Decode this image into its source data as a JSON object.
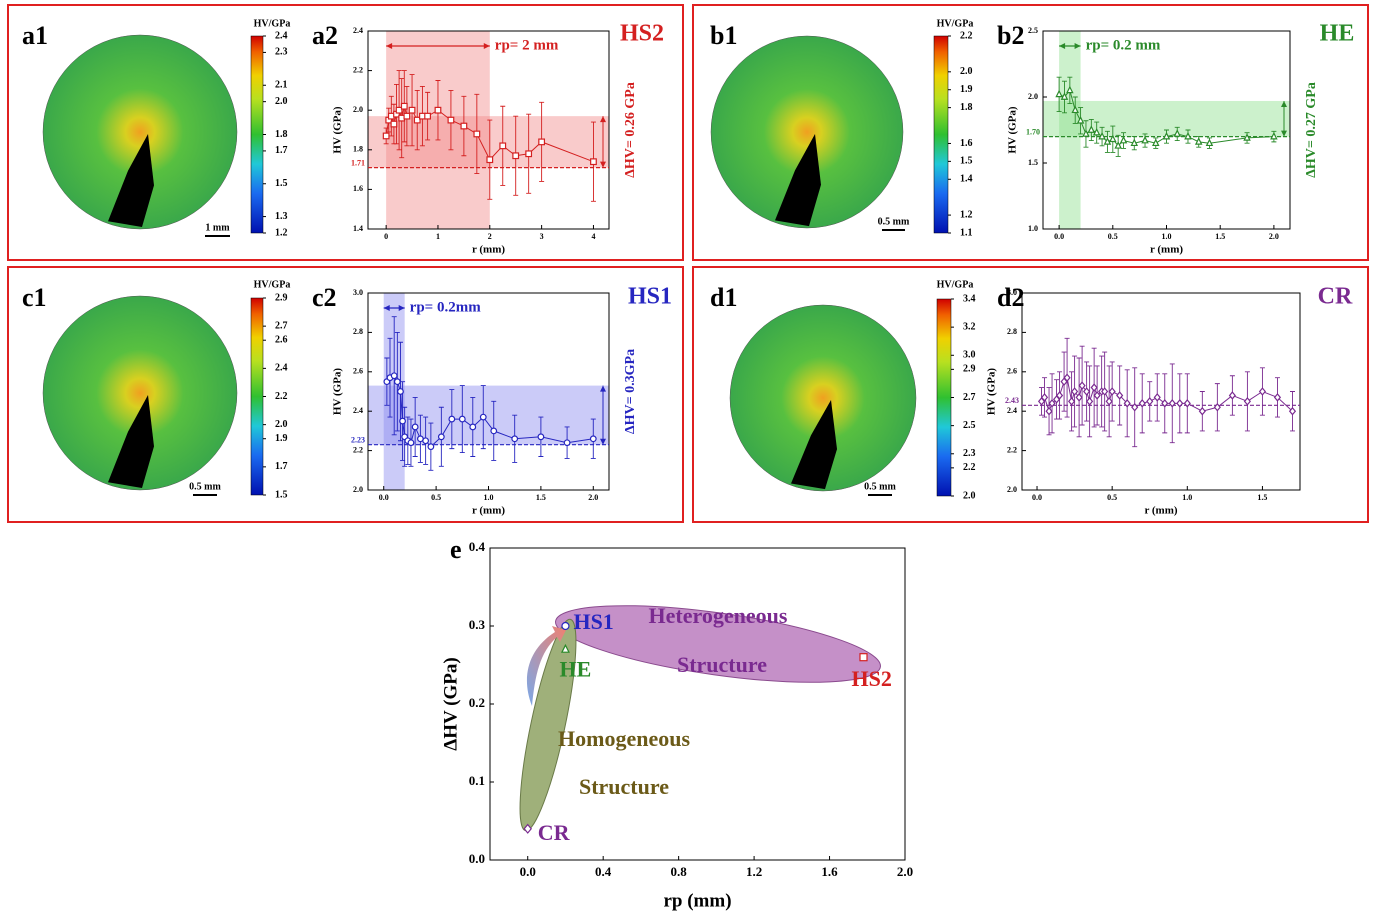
{
  "chart_data": [
    {
      "type": "colorbar",
      "panel": "a1",
      "title": "HV/GPa",
      "ylim": [
        1.2,
        2.4
      ],
      "yticks": [
        1.2,
        1.3,
        1.5,
        1.7,
        1.8,
        {
          "value": 2,
          "label": "2.0"
        },
        2.1,
        2.3,
        2.4
      ],
      "scale_bar": "1 mm"
    },
    {
      "type": "line",
      "panel": "a2",
      "tag": "HS2",
      "color": "#d42020",
      "shade": "#f28b8b",
      "marker": "square",
      "xlabel": "r (mm)",
      "ylabel": "HV (GPa)",
      "xlim": [
        -0.35,
        4.3
      ],
      "xticks": [
        0,
        1,
        2,
        3,
        4
      ],
      "ylim": [
        1.4,
        2.4
      ],
      "yticks": [
        1.4,
        1.6,
        1.8,
        {
          "value": 2,
          "label": "2.0"
        },
        2.2,
        2.4
      ],
      "x": [
        0,
        0.05,
        0.1,
        0.15,
        0.2,
        0.25,
        0.3,
        0.35,
        0.4,
        0.5,
        0.6,
        0.7,
        0.8,
        1.0,
        1.25,
        1.5,
        1.75,
        2.0,
        2.25,
        2.5,
        2.75,
        3.0,
        4.0
      ],
      "values": [
        1.87,
        1.95,
        1.97,
        1.93,
        1.98,
        2.0,
        1.96,
        2.02,
        1.97,
        2.0,
        1.95,
        1.97,
        1.97,
        2.0,
        1.95,
        1.92,
        1.88,
        1.75,
        1.82,
        1.77,
        1.78,
        1.84,
        1.74
      ],
      "errors": [
        0.04,
        0.06,
        0.1,
        0.1,
        0.15,
        0.2,
        0.2,
        0.18,
        0.15,
        0.18,
        0.15,
        0.15,
        0.12,
        0.15,
        0.15,
        0.15,
        0.2,
        0.2,
        0.2,
        0.2,
        0.2,
        0.2,
        0.2
      ],
      "ref": 1.71,
      "rp": 2,
      "rp_label": "rp= 2 mm",
      "dhv": 0.26,
      "dhv_label": "ΔHV= 0.26 GPa"
    },
    {
      "type": "colorbar",
      "panel": "b1",
      "title": "HV/GPa",
      "ylim": [
        1.1,
        2.2
      ],
      "yticks": [
        1.1,
        1.2,
        1.4,
        1.5,
        1.6,
        1.8,
        1.9,
        {
          "value": 2,
          "label": "2.0"
        },
        2.2
      ],
      "scale_bar": "0.5 mm"
    },
    {
      "type": "line",
      "panel": "b2",
      "tag": "HE",
      "color": "#2a8a2a",
      "shade": "#8fe08f",
      "marker": "triangle",
      "xlabel": "r (mm)",
      "ylabel": "HV (GPa)",
      "xlim": [
        -0.15,
        2.15
      ],
      "xticks": [
        {
          "value": 0,
          "label": "0.0"
        },
        0.5,
        {
          "value": 1,
          "label": "1.0"
        },
        1.5,
        {
          "value": 2,
          "label": "2.0"
        }
      ],
      "ylim": [
        1.0,
        2.5
      ],
      "yticks": [
        {
          "value": 1,
          "label": "1.0"
        },
        1.5,
        {
          "value": 2,
          "label": "2.0"
        },
        2.5
      ],
      "x": [
        0,
        0.05,
        0.1,
        0.15,
        0.2,
        0.25,
        0.3,
        0.35,
        0.4,
        0.45,
        0.5,
        0.55,
        0.6,
        0.7,
        0.8,
        0.9,
        1.0,
        1.1,
        1.2,
        1.3,
        1.4,
        1.75,
        2.0
      ],
      "values": [
        2.02,
        2.0,
        2.05,
        1.9,
        1.82,
        1.72,
        1.75,
        1.73,
        1.7,
        1.66,
        1.68,
        1.63,
        1.67,
        1.65,
        1.67,
        1.65,
        1.7,
        1.72,
        1.7,
        1.66,
        1.65,
        1.69,
        1.7
      ],
      "errors": [
        0.13,
        0.12,
        0.1,
        0.1,
        0.1,
        0.1,
        0.08,
        0.08,
        0.07,
        0.08,
        0.1,
        0.08,
        0.06,
        0.05,
        0.05,
        0.04,
        0.05,
        0.05,
        0.05,
        0.04,
        0.04,
        0.04,
        0.04
      ],
      "ref": {
        "value": 1.7,
        "label": "1.70"
      },
      "rp": 0.2,
      "rp_label": "rp= 0.2 mm",
      "dhv": 0.27,
      "dhv_label": "ΔHV= 0.27 GPa"
    },
    {
      "type": "colorbar",
      "panel": "c1",
      "title": "HV/GPa",
      "ylim": [
        1.5,
        2.9
      ],
      "yticks": [
        1.5,
        1.7,
        1.9,
        {
          "value": 2,
          "label": "2.0"
        },
        2.2,
        2.4,
        2.6,
        2.7,
        2.9
      ],
      "scale_bar": "0.5 mm"
    },
    {
      "type": "line",
      "panel": "c2",
      "tag": "HS1",
      "color": "#2626c0",
      "shade": "#8c8cf0",
      "marker": "circle",
      "xlabel": "r (mm)",
      "ylabel": "HV (GPa)",
      "xlim": [
        -0.15,
        2.15
      ],
      "xticks": [
        {
          "value": 0,
          "label": "0.0"
        },
        0.5,
        {
          "value": 1,
          "label": "1.0"
        },
        1.5,
        {
          "value": 2,
          "label": "2.0"
        }
      ],
      "ylim": [
        2.0,
        3.0
      ],
      "yticks": [
        {
          "value": 2,
          "label": "2.0"
        },
        2.2,
        2.4,
        2.6,
        2.8,
        {
          "value": 3,
          "label": "3.0"
        }
      ],
      "x": [
        0.03,
        0.06,
        0.1,
        0.13,
        0.16,
        0.18,
        0.2,
        0.23,
        0.26,
        0.3,
        0.35,
        0.4,
        0.45,
        0.55,
        0.65,
        0.75,
        0.85,
        0.95,
        1.05,
        1.25,
        1.5,
        1.75,
        2.0
      ],
      "values": [
        2.55,
        2.57,
        2.58,
        2.55,
        2.5,
        2.35,
        2.27,
        2.25,
        2.24,
        2.32,
        2.26,
        2.25,
        2.22,
        2.27,
        2.36,
        2.36,
        2.32,
        2.37,
        2.3,
        2.26,
        2.27,
        2.24,
        2.26
      ],
      "errors": [
        0.12,
        0.2,
        0.3,
        0.25,
        0.25,
        0.2,
        0.15,
        0.12,
        0.12,
        0.15,
        0.12,
        0.12,
        0.12,
        0.15,
        0.15,
        0.17,
        0.15,
        0.16,
        0.15,
        0.12,
        0.1,
        0.08,
        0.1
      ],
      "ref": 2.23,
      "rp": 0.2,
      "rp_label": "rp= 0.2mm",
      "dhv": 0.3,
      "dhv_label": "ΔHV= 0.3GPa"
    },
    {
      "type": "colorbar",
      "panel": "d1",
      "title": "HV/GPa",
      "ylim": [
        2.0,
        3.4
      ],
      "yticks": [
        {
          "value": 2,
          "label": "2.0"
        },
        2.2,
        2.3,
        2.5,
        2.7,
        2.9,
        {
          "value": 3,
          "label": "3.0"
        },
        3.2,
        3.4
      ],
      "scale_bar": "0.5 mm"
    },
    {
      "type": "line",
      "panel": "d2",
      "tag": "CR",
      "color": "#7a2a90",
      "marker": "diamond",
      "xlabel": "r (mm)",
      "ylabel": "HV (GPa)",
      "xlim": [
        -0.1,
        1.75
      ],
      "xticks": [
        {
          "value": 0,
          "label": "0.0"
        },
        0.5,
        {
          "value": 1,
          "label": "1.0"
        },
        1.5
      ],
      "ylim": [
        2.0,
        3.0
      ],
      "yticks": [
        {
          "value": 2,
          "label": "2.0"
        },
        2.2,
        2.4,
        2.6,
        2.8,
        {
          "value": 3,
          "label": "3.0"
        }
      ],
      "x": [
        0.03,
        0.05,
        0.08,
        0.1,
        0.13,
        0.15,
        0.18,
        0.2,
        0.23,
        0.25,
        0.28,
        0.3,
        0.33,
        0.35,
        0.38,
        0.4,
        0.43,
        0.45,
        0.48,
        0.5,
        0.55,
        0.6,
        0.65,
        0.7,
        0.75,
        0.8,
        0.85,
        0.9,
        0.95,
        1.0,
        1.1,
        1.2,
        1.3,
        1.4,
        1.5,
        1.6,
        1.7
      ],
      "values": [
        2.45,
        2.47,
        2.4,
        2.44,
        2.46,
        2.48,
        2.55,
        2.57,
        2.45,
        2.5,
        2.47,
        2.53,
        2.5,
        2.45,
        2.52,
        2.48,
        2.5,
        2.5,
        2.45,
        2.5,
        2.48,
        2.44,
        2.42,
        2.44,
        2.45,
        2.47,
        2.44,
        2.44,
        2.44,
        2.44,
        2.4,
        2.42,
        2.48,
        2.45,
        2.5,
        2.47,
        2.4
      ],
      "errors": [
        0.07,
        0.1,
        0.12,
        0.15,
        0.1,
        0.12,
        0.15,
        0.2,
        0.15,
        0.18,
        0.2,
        0.2,
        0.15,
        0.18,
        0.2,
        0.15,
        0.18,
        0.2,
        0.18,
        0.15,
        0.15,
        0.17,
        0.2,
        0.15,
        0.1,
        0.12,
        0.15,
        0.2,
        0.15,
        0.15,
        0.1,
        0.12,
        0.1,
        0.15,
        0.12,
        0.1,
        0.1
      ],
      "ref": 2.43
    },
    {
      "type": "scatter",
      "panel": "e",
      "xlabel": "rp (mm)",
      "ylabel": "ΔHV (GPa)",
      "xlim": [
        -0.2,
        2.0
      ],
      "xticks": [
        {
          "value": 0,
          "label": "0.0"
        },
        0.4,
        0.8,
        1.2,
        1.6,
        {
          "value": 2,
          "label": "2.0"
        }
      ],
      "ylim": [
        0,
        0.4
      ],
      "yticks": [
        {
          "value": 0,
          "label": "0.0"
        },
        0.1,
        0.2,
        0.3,
        0.4
      ],
      "series": [
        {
          "name": "HS1",
          "color": "#2626c0",
          "marker": "circle",
          "x": [
            0.2
          ],
          "values": [
            0.3
          ]
        },
        {
          "name": "HE",
          "color": "#2a8a2a",
          "marker": "triangle",
          "x": [
            0.2
          ],
          "values": [
            0.27
          ]
        },
        {
          "name": "HS2",
          "color": "#d42020",
          "marker": "square",
          "x": [
            1.78
          ],
          "values": [
            0.26
          ]
        },
        {
          "name": "CR",
          "color": "#7a2a90",
          "marker": "diamond",
          "x": [
            0
          ],
          "values": [
            0.04
          ]
        }
      ],
      "annotations": [
        {
          "text": "Heterogeneous",
          "color": "#7a2a90"
        },
        {
          "text": "Structure",
          "color": "#7a2a90"
        },
        {
          "text": "Homogeneous",
          "color": "#6b5a18"
        },
        {
          "text": "Structure",
          "color": "#6b5a18"
        }
      ]
    }
  ]
}
